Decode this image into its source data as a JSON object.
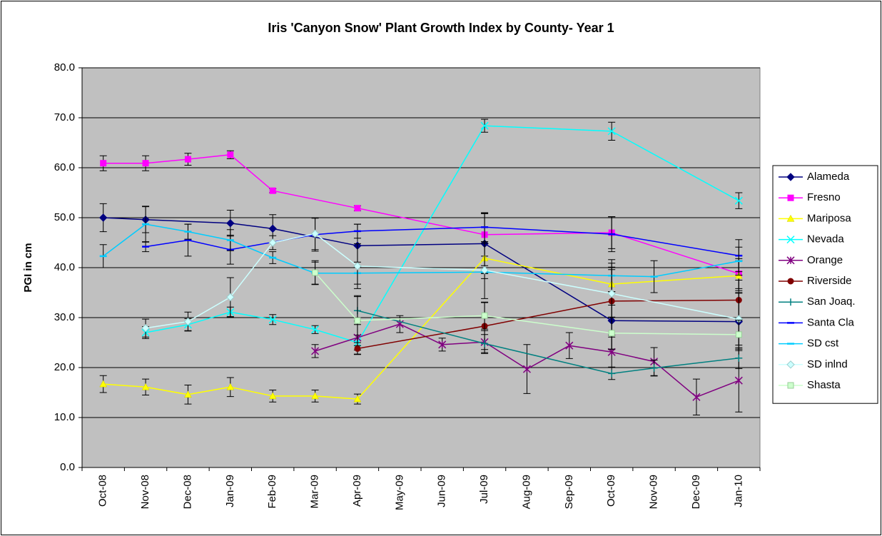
{
  "chart_data": {
    "type": "line",
    "title": "Iris 'Canyon Snow' Plant Growth Index by County- Year 1",
    "y_label": "PGI in cm",
    "categories": [
      "Oct-08",
      "Nov-08",
      "Dec-08",
      "Jan-09",
      "Feb-09",
      "Mar-09",
      "Apr-09",
      "May-09",
      "Jun-09",
      "Jul-09",
      "Aug-09",
      "Sep-09",
      "Oct-09",
      "Nov-09",
      "Dec-09",
      "Jan-10"
    ],
    "ylim": [
      0,
      80
    ],
    "yticks": [
      {
        "value": 0,
        "label": "0.0"
      },
      {
        "value": 10,
        "label": "10.0"
      },
      {
        "value": 20,
        "label": "20.0"
      },
      {
        "value": 30,
        "label": "30.0"
      },
      {
        "value": 40,
        "label": "40.0"
      },
      {
        "value": 50,
        "label": "50.0"
      },
      {
        "value": 60,
        "label": "60.0"
      },
      {
        "value": 70,
        "label": "70.0"
      },
      {
        "value": 80,
        "label": "80.0"
      }
    ],
    "grid": true,
    "legend": "right",
    "plot_background": "#c0c0c0",
    "series": [
      {
        "name": "Alameda",
        "color": "#000080",
        "marker": "diamond",
        "values": [
          50.0,
          49.6,
          null,
          48.9,
          47.8,
          null,
          44.4,
          null,
          null,
          44.8,
          null,
          null,
          29.4,
          null,
          null,
          29.2
        ],
        "errors": [
          2.8,
          2.6,
          null,
          2.6,
          2.8,
          null,
          4.3,
          null,
          null,
          6.0,
          null,
          null,
          5.8,
          null,
          null,
          5.8
        ]
      },
      {
        "name": "Fresno",
        "color": "#ff00ff",
        "marker": "square",
        "values": [
          60.9,
          60.9,
          61.7,
          62.6,
          55.4,
          null,
          51.9,
          null,
          null,
          46.6,
          null,
          null,
          47.0,
          null,
          null,
          38.8
        ],
        "errors": [
          1.5,
          1.5,
          1.2,
          0.8,
          0.4,
          null,
          0.5,
          null,
          null,
          4.3,
          null,
          null,
          3.2,
          null,
          null,
          3.0
        ]
      },
      {
        "name": "Mariposa",
        "color": "#ffff00",
        "marker": "triangle",
        "values": [
          16.7,
          16.1,
          14.6,
          16.1,
          14.3,
          14.3,
          13.7,
          null,
          null,
          41.9,
          null,
          null,
          36.7,
          null,
          null,
          38.4
        ],
        "errors": [
          1.7,
          1.6,
          1.9,
          1.9,
          1.2,
          1.2,
          1.0,
          null,
          null,
          3.0,
          null,
          null,
          4.2,
          null,
          null,
          3.0
        ]
      },
      {
        "name": "Nevada",
        "color": "#00ffff",
        "marker": "x",
        "values": [
          null,
          27.0,
          28.6,
          31.1,
          29.6,
          27.6,
          25.0,
          null,
          null,
          68.4,
          null,
          null,
          67.3,
          null,
          null,
          53.4
        ],
        "errors": [
          null,
          1.2,
          1.2,
          1.0,
          1.0,
          0.8,
          1.5,
          null,
          null,
          1.3,
          null,
          null,
          1.8,
          null,
          null,
          1.6
        ]
      },
      {
        "name": "Orange",
        "color": "#800080",
        "marker": "star",
        "values": [
          null,
          null,
          null,
          null,
          null,
          23.3,
          26.0,
          28.7,
          24.6,
          25.1,
          19.7,
          24.4,
          23.1,
          21.2,
          14.1,
          17.4
        ],
        "errors": [
          null,
          null,
          null,
          null,
          null,
          1.3,
          3.3,
          1.7,
          1.3,
          2.3,
          4.9,
          2.6,
          3.0,
          2.8,
          3.6,
          6.3
        ]
      },
      {
        "name": "Riverside",
        "color": "#800000",
        "marker": "circle",
        "values": [
          null,
          null,
          null,
          null,
          null,
          null,
          23.8,
          null,
          null,
          28.3,
          null,
          null,
          33.3,
          null,
          null,
          33.5
        ],
        "errors": [
          null,
          null,
          null,
          null,
          null,
          null,
          1.2,
          null,
          null,
          4.7,
          null,
          null,
          6.8,
          null,
          null,
          4.0
        ]
      },
      {
        "name": "San Joaq.",
        "color": "#008080",
        "marker": "plus",
        "values": [
          null,
          null,
          null,
          null,
          null,
          null,
          31.4,
          null,
          null,
          24.8,
          null,
          null,
          18.8,
          19.9,
          null,
          21.9
        ],
        "errors": [
          null,
          null,
          null,
          null,
          null,
          null,
          2.8,
          null,
          null,
          1.8,
          null,
          null,
          1.2,
          1.6,
          null,
          2.1
        ]
      },
      {
        "name": "Santa Cla",
        "color": "#0000ff",
        "marker": "dash",
        "values": [
          null,
          44.2,
          45.5,
          43.6,
          null,
          46.6,
          47.3,
          null,
          null,
          48.1,
          null,
          null,
          46.7,
          null,
          null,
          42.4
        ],
        "errors": [
          null,
          1.0,
          3.2,
          2.9,
          null,
          3.3,
          1.4,
          null,
          null,
          2.9,
          null,
          null,
          3.5,
          null,
          null,
          3.2
        ]
      },
      {
        "name": "SD cst",
        "color": "#00ccff",
        "marker": "dash",
        "values": [
          42.3,
          48.7,
          47.2,
          45.5,
          42.0,
          38.9,
          38.9,
          null,
          null,
          39.1,
          null,
          null,
          38.4,
          38.2,
          null,
          41.3
        ],
        "errors": [
          2.3,
          3.6,
          1.5,
          2.1,
          1.2,
          2.2,
          2.2,
          null,
          null,
          1.3,
          null,
          null,
          3.2,
          3.2,
          null,
          2.8
        ]
      },
      {
        "name": "SD inlnd",
        "color": "#ccffff",
        "marker": "diamond",
        "values": [
          null,
          27.9,
          29.2,
          34.1,
          45.0,
          46.8,
          40.3,
          null,
          null,
          39.5,
          null,
          null,
          34.8,
          null,
          null,
          29.7
        ],
        "errors": [
          null,
          1.8,
          1.9,
          3.9,
          1.4,
          3.2,
          4.5,
          null,
          null,
          5.7,
          null,
          null,
          4.8,
          null,
          null,
          5.2
        ]
      },
      {
        "name": "Shasta",
        "color": "#ccffcc",
        "marker": "square",
        "values": [
          null,
          null,
          null,
          null,
          null,
          39.0,
          29.4,
          null,
          null,
          30.4,
          null,
          null,
          26.9,
          null,
          null,
          26.6
        ],
        "errors": [
          null,
          null,
          null,
          null,
          null,
          2.4,
          5.0,
          null,
          null,
          2.7,
          null,
          null,
          3.2,
          null,
          null,
          2.9
        ]
      }
    ]
  }
}
